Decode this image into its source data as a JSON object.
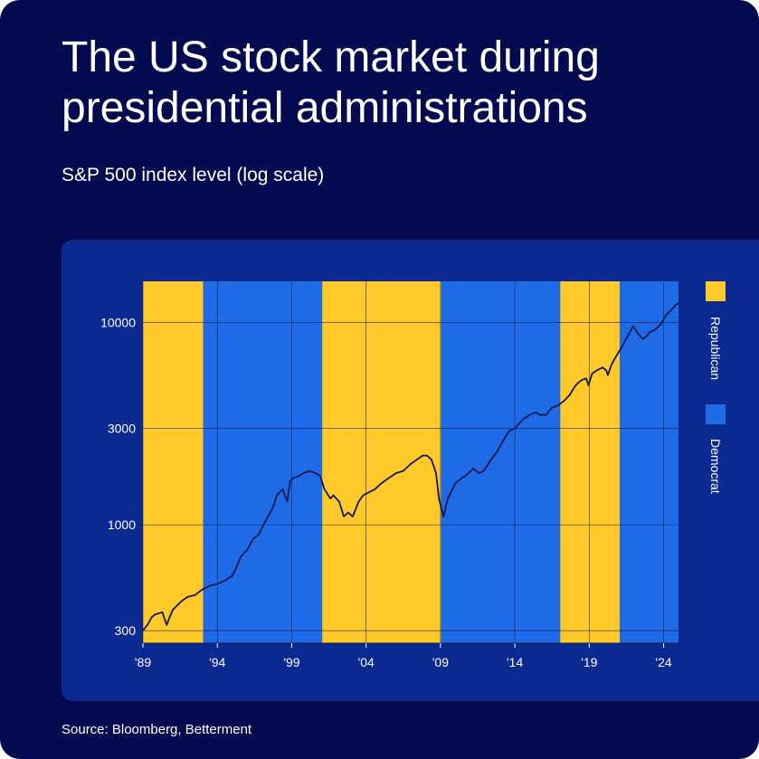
{
  "header": {
    "title": "The US stock market during presidential administrations",
    "subtitle": "S&P 500 index level (log scale)"
  },
  "footer": {
    "source": "Source: Bloomberg, Betterment"
  },
  "colors": {
    "background": "#030a4f",
    "panel": "#0a2a92",
    "republican": "#ffc929",
    "democrat": "#1f6ae6",
    "line": "#0f1a4f",
    "text": "#ffffff"
  },
  "chart_data": {
    "type": "line",
    "scale": "log",
    "xlim": [
      1989.0,
      2025.0
    ],
    "ylim": [
      260,
      16000
    ],
    "x_ticks": [
      {
        "value": 1989,
        "label": "'89"
      },
      {
        "value": 1994,
        "label": "'94"
      },
      {
        "value": 1999,
        "label": "'99"
      },
      {
        "value": 2004,
        "label": "'04"
      },
      {
        "value": 2009,
        "label": "'09"
      },
      {
        "value": 2014,
        "label": "'14"
      },
      {
        "value": 2019,
        "label": "'19"
      },
      {
        "value": 2024,
        "label": "'24"
      }
    ],
    "y_ticks": [
      {
        "value": 300,
        "label": "300"
      },
      {
        "value": 1000,
        "label": "1000"
      },
      {
        "value": 3000,
        "label": "3000"
      },
      {
        "value": 10000,
        "label": "10000"
      }
    ],
    "legend": {
      "placement": "right",
      "items": [
        {
          "label": "Republican",
          "color": "#ffc929"
        },
        {
          "label": "Democrat",
          "color": "#1f6ae6"
        }
      ]
    },
    "administrations": [
      {
        "start": 1989.0,
        "end": 1993.05,
        "party": "Republican"
      },
      {
        "start": 1993.05,
        "end": 2001.05,
        "party": "Democrat"
      },
      {
        "start": 2001.05,
        "end": 2009.05,
        "party": "Republican"
      },
      {
        "start": 2009.05,
        "end": 2017.05,
        "party": "Democrat"
      },
      {
        "start": 2017.05,
        "end": 2021.05,
        "party": "Republican"
      },
      {
        "start": 2021.05,
        "end": 2025.0,
        "party": "Democrat"
      }
    ],
    "series": [
      {
        "x": [
          1989.0,
          1989.3,
          1989.6,
          1989.8,
          1990.3,
          1990.6,
          1990.8,
          1991.0,
          1991.3,
          1991.6,
          1992.0,
          1992.5,
          1993.0,
          1993.5,
          1994.0,
          1994.5,
          1995.0,
          1995.3,
          1995.6,
          1996.0,
          1996.4,
          1996.8,
          1997.1,
          1997.4,
          1997.7,
          1998.0,
          1998.4,
          1998.7,
          1998.9,
          1999.1,
          1999.5,
          1999.8,
          2000.2,
          2000.6,
          2000.9,
          2001.2,
          2001.6,
          2001.8,
          2002.2,
          2002.5,
          2002.8,
          2003.1,
          2003.5,
          2003.8,
          2004.2,
          2004.6,
          2005.0,
          2005.5,
          2006.0,
          2006.5,
          2007.0,
          2007.4,
          2007.8,
          2008.1,
          2008.4,
          2008.7,
          2008.9,
          2009.2,
          2009.5,
          2010.0,
          2010.4,
          2010.7,
          2011.2,
          2011.6,
          2011.9,
          2012.4,
          2012.8,
          2013.2,
          2013.6,
          2014.0,
          2014.5,
          2015.0,
          2015.4,
          2015.7,
          2016.1,
          2016.5,
          2016.9,
          2017.3,
          2017.7,
          2018.0,
          2018.2,
          2018.5,
          2018.8,
          2018.95,
          2019.2,
          2019.5,
          2019.9,
          2020.15,
          2020.25,
          2020.5,
          2020.8,
          2021.2,
          2021.6,
          2021.95,
          2022.3,
          2022.6,
          2022.8,
          2023.1,
          2023.4,
          2023.8,
          2024.2,
          2024.5,
          2024.8,
          2025.0
        ],
        "values": [
          300,
          320,
          350,
          360,
          370,
          320,
          350,
          380,
          400,
          420,
          440,
          450,
          480,
          500,
          510,
          530,
          560,
          620,
          700,
          750,
          850,
          900,
          1000,
          1100,
          1200,
          1400,
          1500,
          1300,
          1650,
          1700,
          1750,
          1800,
          1850,
          1800,
          1750,
          1500,
          1350,
          1400,
          1300,
          1100,
          1150,
          1100,
          1300,
          1400,
          1450,
          1500,
          1600,
          1700,
          1800,
          1850,
          2000,
          2100,
          2200,
          2200,
          2100,
          1800,
          1350,
          1100,
          1350,
          1600,
          1700,
          1750,
          1900,
          1800,
          1850,
          2100,
          2300,
          2600,
          2900,
          3000,
          3300,
          3500,
          3600,
          3500,
          3500,
          3800,
          3900,
          4100,
          4400,
          4800,
          5000,
          5200,
          5300,
          4900,
          5600,
          5800,
          6000,
          5800,
          5500,
          6200,
          6800,
          7600,
          8600,
          9600,
          8800,
          8300,
          8500,
          9000,
          9200,
          9800,
          11000,
          11500,
          12200,
          12500
        ]
      }
    ]
  }
}
